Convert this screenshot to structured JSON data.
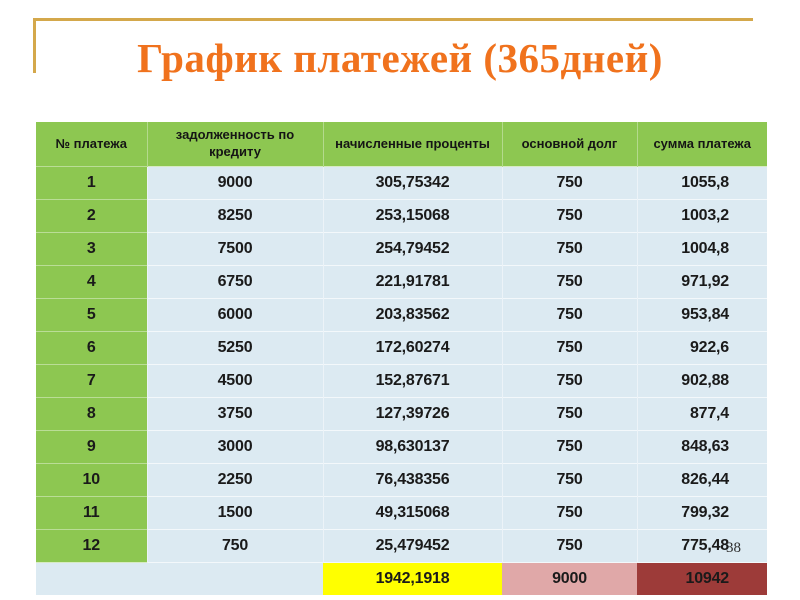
{
  "slide": {
    "title": "График платежей (365дней)",
    "page_number": "38"
  },
  "colors": {
    "title_orange": "#F0721D",
    "accent_gold": "#D4A84B",
    "header_green": "#8DC751",
    "row_blue": "#DCEAF2",
    "total_yellow": "#FFFF00",
    "total_pink": "#E0A8A8",
    "total_dark_red": "#9D3B39"
  },
  "table": {
    "columns": [
      "№ платежа",
      "задолженность по кредиту",
      "начисленные проценты",
      "основной долг",
      "сумма платежа"
    ],
    "rows": [
      [
        "1",
        "9000",
        "305,75342",
        "750",
        "1055,8"
      ],
      [
        "2",
        "8250",
        "253,15068",
        "750",
        "1003,2"
      ],
      [
        "3",
        "7500",
        "254,79452",
        "750",
        "1004,8"
      ],
      [
        "4",
        "6750",
        "221,91781",
        "750",
        "971,92"
      ],
      [
        "5",
        "6000",
        "203,83562",
        "750",
        "953,84"
      ],
      [
        "6",
        "5250",
        "172,60274",
        "750",
        "922,6"
      ],
      [
        "7",
        "4500",
        "152,87671",
        "750",
        "902,88"
      ],
      [
        "8",
        "3750",
        "127,39726",
        "750",
        "877,4"
      ],
      [
        "9",
        "3000",
        "98,630137",
        "750",
        "848,63"
      ],
      [
        "10",
        "2250",
        "76,438356",
        "750",
        "826,44"
      ],
      [
        "11",
        "1500",
        "49,315068",
        "750",
        "799,32"
      ],
      [
        "12",
        "750",
        "25,479452",
        "750",
        "775,48"
      ]
    ],
    "totals": {
      "interest_total": "1942,1918",
      "principal_total": "9000",
      "payment_total": "10942"
    }
  }
}
